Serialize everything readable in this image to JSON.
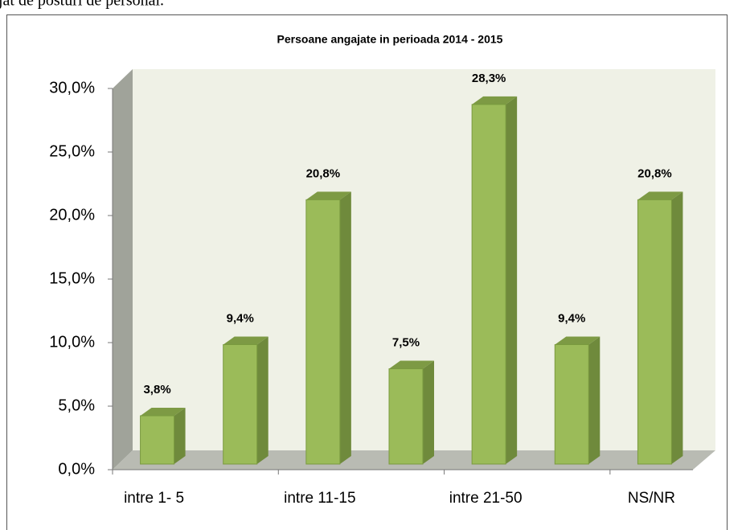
{
  "caption": "jat de posturi de personal.",
  "chart_data": {
    "type": "bar3d",
    "title": "Persoane angajate in perioada 2014 - 2015",
    "categories": [
      "intre 1- 5",
      null,
      "intre 11-15",
      null,
      "intre 21-50",
      null,
      "NS/NR"
    ],
    "values": [
      3.8,
      9.4,
      20.8,
      7.5,
      28.3,
      9.4,
      20.8
    ],
    "value_labels": [
      "3,8%",
      "9,4%",
      "20,8%",
      "7,5%",
      "28,3%",
      "9,4%",
      "20,8%"
    ],
    "color": "#9bbb59",
    "ylim": [
      0,
      30
    ],
    "yticks": [
      {
        "value": 0,
        "label": "0,0%"
      },
      {
        "value": 5,
        "label": "5,0%"
      },
      {
        "value": 10,
        "label": "10,0%"
      },
      {
        "value": 15,
        "label": "15,0%"
      },
      {
        "value": 20,
        "label": "20,0%"
      },
      {
        "value": 25,
        "label": "25,0%"
      },
      {
        "value": 30,
        "label": "30,0%"
      }
    ]
  }
}
